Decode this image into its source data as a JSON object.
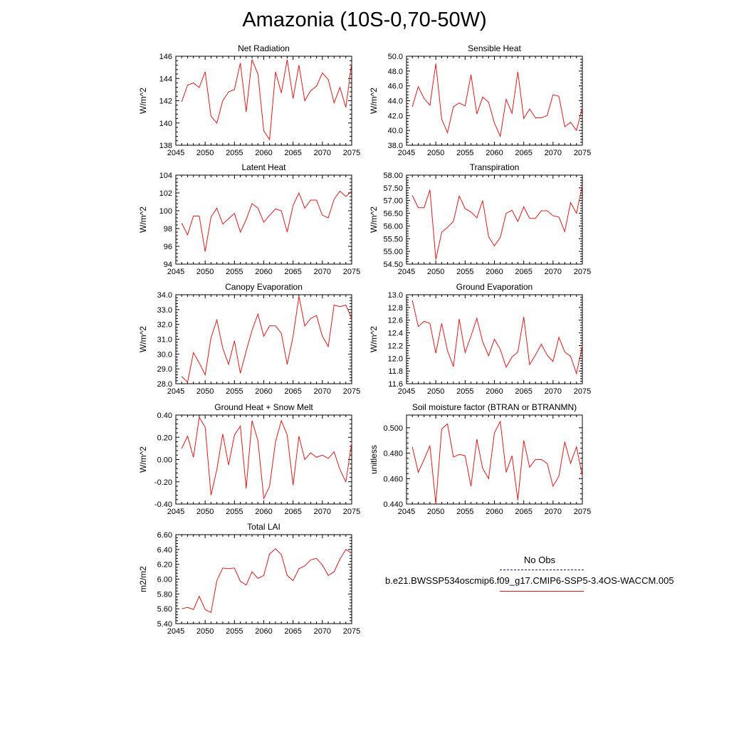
{
  "page": {
    "title": "Amazonia (10S-0,70-50W)"
  },
  "legend": {
    "obs_label": "No Obs",
    "obs_line_color": "#1c1c6e",
    "model_label": "b.e21.BWSSP534oscmip6.f09_g17.CMIP6-SSP5-3.4OS-WACCM.005",
    "model_line_color": "#e41a1c"
  },
  "chart_data": [
    {
      "type": "line",
      "title": "Net Radiation",
      "ylabel": "W/m^2",
      "xlim": [
        2045,
        2075
      ],
      "ylim": [
        138,
        146
      ],
      "xticks": [
        "2045",
        "2050",
        "2055",
        "2060",
        "2065",
        "2070",
        "2075"
      ],
      "yticks": [
        "138",
        "140",
        "142",
        "144",
        "146"
      ],
      "x": [
        2046,
        2047,
        2048,
        2049,
        2050,
        2051,
        2052,
        2053,
        2054,
        2055,
        2056,
        2057,
        2058,
        2059,
        2060,
        2061,
        2062,
        2063,
        2064,
        2065,
        2066,
        2067,
        2068,
        2069,
        2070,
        2071,
        2072,
        2073,
        2074,
        2075
      ],
      "series": [
        {
          "color": "#e41a1c",
          "values": [
            141.9,
            143.4,
            143.6,
            143.2,
            144.6,
            140.6,
            140.0,
            142.0,
            142.8,
            143.0,
            145.4,
            141.0,
            145.7,
            144.4,
            139.3,
            138.5,
            144.6,
            142.7,
            145.7,
            142.2,
            145.2,
            142.0,
            142.9,
            143.3,
            144.5,
            143.9,
            141.8,
            143.2,
            141.4,
            145.4
          ]
        }
      ]
    },
    {
      "type": "line",
      "title": "Sensible Heat",
      "ylabel": "W/m^2",
      "xlim": [
        2045,
        2075
      ],
      "ylim": [
        38,
        50
      ],
      "xticks": [
        "2045",
        "2050",
        "2055",
        "2060",
        "2065",
        "2070",
        "2075"
      ],
      "yticks": [
        "38.0",
        "40.0",
        "42.0",
        "44.0",
        "46.0",
        "48.0",
        "50.0"
      ],
      "x": [
        2046,
        2047,
        2048,
        2049,
        2050,
        2051,
        2052,
        2053,
        2054,
        2055,
        2056,
        2057,
        2058,
        2059,
        2060,
        2061,
        2062,
        2063,
        2064,
        2065,
        2066,
        2067,
        2068,
        2069,
        2070,
        2071,
        2072,
        2073,
        2074,
        2075
      ],
      "series": [
        {
          "color": "#e41a1c",
          "values": [
            43.2,
            45.9,
            44.3,
            43.4,
            49.0,
            41.5,
            39.7,
            43.2,
            43.7,
            43.3,
            47.5,
            42.2,
            44.5,
            43.8,
            41.0,
            39.2,
            44.2,
            42.3,
            47.9,
            41.6,
            42.9,
            41.7,
            41.7,
            42.0,
            44.8,
            44.6,
            40.5,
            41.1,
            40.0,
            43.1
          ]
        }
      ]
    },
    {
      "type": "line",
      "title": "Latent Heat",
      "ylabel": "W/m^2",
      "xlim": [
        2045,
        2075
      ],
      "ylim": [
        94,
        104
      ],
      "xticks": [
        "2045",
        "2050",
        "2055",
        "2060",
        "2065",
        "2070",
        "2075"
      ],
      "yticks": [
        "94",
        "96",
        "98",
        "100",
        "102",
        "104"
      ],
      "x": [
        2046,
        2047,
        2048,
        2049,
        2050,
        2051,
        2052,
        2053,
        2054,
        2055,
        2056,
        2057,
        2058,
        2059,
        2060,
        2061,
        2062,
        2063,
        2064,
        2065,
        2066,
        2067,
        2068,
        2069,
        2070,
        2071,
        2072,
        2073,
        2074,
        2075
      ],
      "series": [
        {
          "color": "#e41a1c",
          "values": [
            98.6,
            97.3,
            99.4,
            99.4,
            95.4,
            99.3,
            100.3,
            98.5,
            99.1,
            99.7,
            97.6,
            99.0,
            100.8,
            100.3,
            98.7,
            99.5,
            100.2,
            100.0,
            97.6,
            100.6,
            102.0,
            100.3,
            101.2,
            101.2,
            99.5,
            99.2,
            101.3,
            102.2,
            101.6,
            102.2
          ]
        }
      ]
    },
    {
      "type": "line",
      "title": "Transpiration",
      "ylabel": "W/m^2",
      "xlim": [
        2045,
        2075
      ],
      "ylim": [
        54.5,
        58.0
      ],
      "xticks": [
        "2045",
        "2050",
        "2055",
        "2060",
        "2065",
        "2070",
        "2075"
      ],
      "yticks": [
        "54.50",
        "55.00",
        "55.50",
        "56.00",
        "56.50",
        "57.00",
        "57.50",
        "58.00"
      ],
      "x": [
        2046,
        2047,
        2048,
        2049,
        2050,
        2051,
        2052,
        2053,
        2054,
        2055,
        2056,
        2057,
        2058,
        2059,
        2060,
        2061,
        2062,
        2063,
        2064,
        2065,
        2066,
        2067,
        2068,
        2069,
        2070,
        2071,
        2072,
        2073,
        2074,
        2075
      ],
      "series": [
        {
          "color": "#e41a1c",
          "values": [
            57.2,
            56.72,
            56.72,
            57.42,
            54.68,
            55.75,
            55.95,
            56.18,
            57.18,
            56.68,
            56.55,
            56.32,
            57.0,
            55.58,
            55.22,
            55.55,
            56.5,
            56.62,
            56.18,
            56.75,
            56.3,
            56.3,
            56.6,
            56.6,
            56.4,
            56.35,
            55.78,
            56.92,
            56.5,
            57.6
          ]
        }
      ]
    },
    {
      "type": "line",
      "title": "Canopy Evaporation",
      "ylabel": "W/m^2",
      "xlim": [
        2045,
        2075
      ],
      "ylim": [
        28,
        34
      ],
      "xticks": [
        "2045",
        "2050",
        "2055",
        "2060",
        "2065",
        "2070",
        "2075"
      ],
      "yticks": [
        "28.0",
        "29.0",
        "30.0",
        "31.0",
        "32.0",
        "33.0",
        "34.0"
      ],
      "x": [
        2046,
        2047,
        2048,
        2049,
        2050,
        2051,
        2052,
        2053,
        2054,
        2055,
        2056,
        2057,
        2058,
        2059,
        2060,
        2061,
        2062,
        2063,
        2064,
        2065,
        2066,
        2067,
        2068,
        2069,
        2070,
        2071,
        2072,
        2073,
        2074,
        2075
      ],
      "series": [
        {
          "color": "#e41a1c",
          "values": [
            28.5,
            28.1,
            30.1,
            29.4,
            28.6,
            31.1,
            32.3,
            30.4,
            29.3,
            30.9,
            28.7,
            30.2,
            31.6,
            32.7,
            31.2,
            31.9,
            31.9,
            31.4,
            29.3,
            31.2,
            33.9,
            31.9,
            32.4,
            32.6,
            31.2,
            30.5,
            33.3,
            33.2,
            33.3,
            32.4
          ]
        }
      ]
    },
    {
      "type": "line",
      "title": "Ground Evaporation",
      "ylabel": "W/m^2",
      "xlim": [
        2045,
        2075
      ],
      "ylim": [
        11.6,
        13.0
      ],
      "xticks": [
        "2045",
        "2050",
        "2055",
        "2060",
        "2065",
        "2070",
        "2075"
      ],
      "yticks": [
        "11.6",
        "11.8",
        "12.0",
        "12.2",
        "12.4",
        "12.6",
        "12.8",
        "13.0"
      ],
      "x": [
        2046,
        2047,
        2048,
        2049,
        2050,
        2051,
        2052,
        2053,
        2054,
        2055,
        2056,
        2057,
        2058,
        2059,
        2060,
        2061,
        2062,
        2063,
        2064,
        2065,
        2066,
        2067,
        2068,
        2069,
        2070,
        2071,
        2072,
        2073,
        2074,
        2075
      ],
      "series": [
        {
          "color": "#e41a1c",
          "values": [
            12.91,
            12.5,
            12.58,
            12.55,
            12.08,
            12.55,
            12.12,
            11.87,
            12.62,
            12.09,
            12.35,
            12.63,
            12.26,
            12.04,
            12.3,
            12.14,
            11.86,
            12.02,
            12.1,
            12.65,
            11.9,
            12.05,
            12.22,
            12.05,
            11.95,
            12.33,
            12.1,
            12.03,
            11.76,
            12.2
          ]
        }
      ]
    },
    {
      "type": "line",
      "title": "Ground Heat + Snow Melt",
      "ylabel": "W/m^2",
      "xlim": [
        2045,
        2075
      ],
      "ylim": [
        -0.4,
        0.4
      ],
      "xticks": [
        "2045",
        "2050",
        "2055",
        "2060",
        "2065",
        "2070",
        "2075"
      ],
      "yticks": [
        "-0.40",
        "-0.20",
        "0.00",
        "0.20",
        "0.40"
      ],
      "x": [
        2046,
        2047,
        2048,
        2049,
        2050,
        2051,
        2052,
        2053,
        2054,
        2055,
        2056,
        2057,
        2058,
        2059,
        2060,
        2061,
        2062,
        2063,
        2064,
        2065,
        2066,
        2067,
        2068,
        2069,
        2070,
        2071,
        2072,
        2073,
        2074,
        2075
      ],
      "series": [
        {
          "color": "#e41a1c",
          "values": [
            0.1,
            0.21,
            0.02,
            0.38,
            0.29,
            -0.32,
            -0.09,
            0.23,
            -0.05,
            0.22,
            0.3,
            -0.26,
            0.35,
            0.17,
            -0.35,
            -0.24,
            0.16,
            0.35,
            0.22,
            -0.23,
            0.21,
            0.0,
            0.06,
            0.02,
            0.04,
            0.01,
            0.07,
            -0.09,
            -0.2,
            0.15
          ]
        }
      ]
    },
    {
      "type": "line",
      "title": "Soil moisture factor (BTRAN or BTRANMN)",
      "ylabel": "unitless",
      "xlim": [
        2045,
        2075
      ],
      "ylim": [
        0.44,
        0.51
      ],
      "xticks": [
        "2045",
        "2050",
        "2055",
        "2060",
        "2065",
        "2070",
        "2075"
      ],
      "yticks": [
        "0.440",
        "0.460",
        "0.480",
        "0.500"
      ],
      "x": [
        2046,
        2047,
        2048,
        2049,
        2050,
        2051,
        2052,
        2053,
        2054,
        2055,
        2056,
        2057,
        2058,
        2059,
        2060,
        2061,
        2062,
        2063,
        2064,
        2065,
        2066,
        2067,
        2068,
        2069,
        2070,
        2071,
        2072,
        2073,
        2074,
        2075
      ],
      "series": [
        {
          "color": "#e41a1c",
          "values": [
            0.485,
            0.465,
            0.475,
            0.486,
            0.44,
            0.499,
            0.503,
            0.477,
            0.479,
            0.478,
            0.454,
            0.491,
            0.468,
            0.46,
            0.496,
            0.505,
            0.465,
            0.478,
            0.443,
            0.49,
            0.469,
            0.475,
            0.475,
            0.472,
            0.454,
            0.462,
            0.489,
            0.472,
            0.485,
            0.462
          ]
        }
      ]
    },
    {
      "type": "line",
      "title": "Total LAI",
      "ylabel": "m2/m2",
      "xlim": [
        2045,
        2075
      ],
      "ylim": [
        5.4,
        6.6
      ],
      "xticks": [
        "2045",
        "2050",
        "2055",
        "2060",
        "2065",
        "2070",
        "2075"
      ],
      "yticks": [
        "5.40",
        "5.60",
        "5.80",
        "6.00",
        "6.20",
        "6.40",
        "6.60"
      ],
      "x": [
        2046,
        2047,
        2048,
        2049,
        2050,
        2051,
        2052,
        2053,
        2054,
        2055,
        2056,
        2057,
        2058,
        2059,
        2060,
        2061,
        2062,
        2063,
        2064,
        2065,
        2066,
        2067,
        2068,
        2069,
        2070,
        2071,
        2072,
        2073,
        2074,
        2075
      ],
      "series": [
        {
          "color": "#e41a1c",
          "values": [
            5.6,
            5.62,
            5.59,
            5.77,
            5.59,
            5.55,
            5.98,
            6.15,
            6.14,
            6.15,
            5.97,
            5.92,
            6.1,
            6.01,
            6.05,
            6.34,
            6.41,
            6.33,
            6.05,
            5.98,
            6.14,
            6.18,
            6.26,
            6.28,
            6.19,
            6.05,
            6.1,
            6.27,
            6.4,
            6.35
          ]
        }
      ]
    }
  ]
}
